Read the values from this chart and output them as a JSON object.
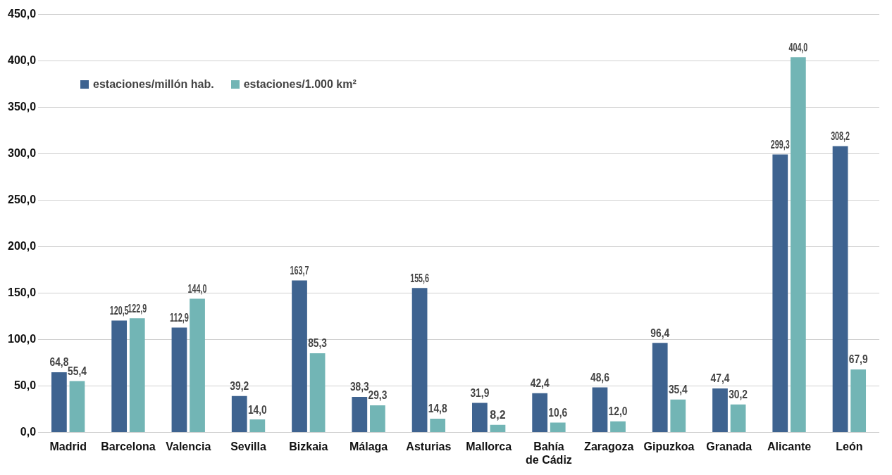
{
  "chart_data": {
    "type": "bar",
    "categories": [
      "Madrid",
      "Barcelona",
      "Valencia",
      "Sevilla",
      "Bizkaia",
      "Málaga",
      "Asturias",
      "Mallorca",
      "Bahía\nde Cádiz",
      "Zaragoza",
      "Gipuzkoa",
      "Granada",
      "Alicante",
      "León"
    ],
    "series": [
      {
        "name": "estaciones/millón hab.",
        "color": "#3e6390",
        "values": [
          64.8,
          120.5,
          112.9,
          39.2,
          163.7,
          38.3,
          155.6,
          31.9,
          42.4,
          48.6,
          96.4,
          47.4,
          299.3,
          308.2
        ],
        "value_labels": [
          "64,8",
          "120,5",
          "112,9",
          "39,2",
          "163,7",
          "38,3",
          "155,6",
          "31,9",
          "42,4",
          "48,6",
          "96,4",
          "47,4",
          "299,3",
          "308,2"
        ]
      },
      {
        "name": "estaciones/1.000 km²",
        "color": "#72b5b5",
        "values": [
          55.4,
          122.9,
          144.0,
          14.0,
          85.3,
          29.3,
          14.8,
          8.2,
          10.6,
          12.0,
          35.4,
          30.2,
          404.0,
          67.9
        ],
        "value_labels": [
          "55,4",
          "122,9",
          "144,0",
          "14,0",
          "85,3",
          "29,3",
          "14,8",
          "8,2",
          "10,6",
          "12,0",
          "35,4",
          "30,2",
          "404,0",
          "67,9"
        ]
      }
    ],
    "ylim": [
      0,
      450
    ],
    "yticks": [
      {
        "value": 0,
        "label": "0,0"
      },
      {
        "value": 50,
        "label": "50,0"
      },
      {
        "value": 100,
        "label": "100,0"
      },
      {
        "value": 150,
        "label": "150,0"
      },
      {
        "value": 200,
        "label": "200,0"
      },
      {
        "value": 250,
        "label": "250,0"
      },
      {
        "value": 300,
        "label": "300,0"
      },
      {
        "value": 350,
        "label": "350,0"
      },
      {
        "value": 400,
        "label": "400,0"
      },
      {
        "value": 450,
        "label": "450,0"
      }
    ],
    "grid": "y",
    "legend": "top left"
  }
}
